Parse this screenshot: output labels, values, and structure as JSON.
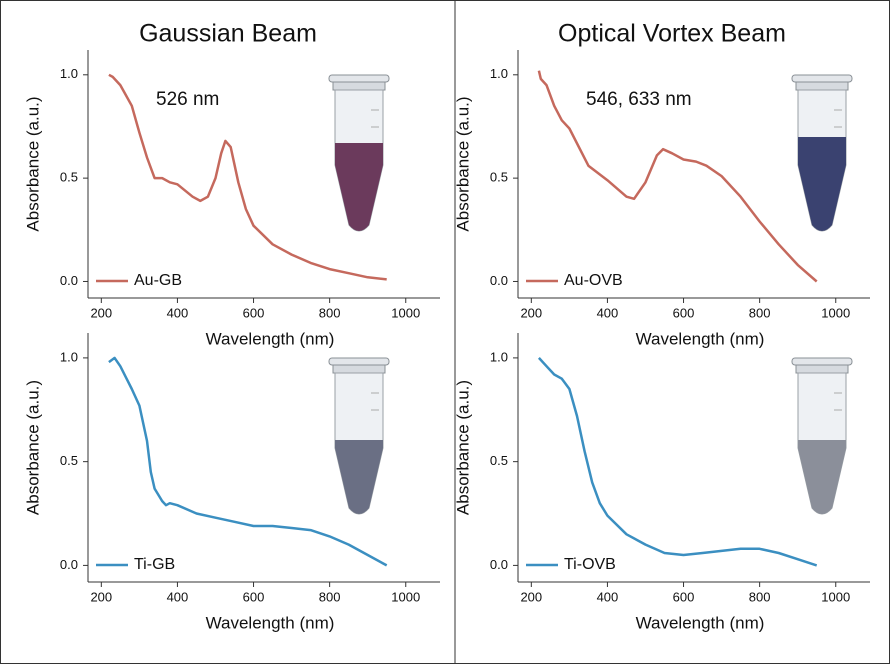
{
  "chart_data": [
    {
      "type": "line",
      "title": "Gaussian Beam",
      "annotation": "526 nm",
      "xlabel": "Wavelength (nm)",
      "ylabel": "Absorbance (a.u.)",
      "x": [
        220,
        230,
        250,
        280,
        300,
        320,
        340,
        360,
        380,
        400,
        440,
        460,
        480,
        500,
        515,
        526,
        540,
        560,
        580,
        600,
        650,
        700,
        750,
        800,
        850,
        900,
        950
      ],
      "series": [
        {
          "name": "Au-GB",
          "color": "#c5695d",
          "values": [
            1.0,
            0.99,
            0.95,
            0.85,
            0.72,
            0.6,
            0.5,
            0.5,
            0.48,
            0.47,
            0.41,
            0.39,
            0.41,
            0.5,
            0.62,
            0.68,
            0.65,
            0.48,
            0.35,
            0.27,
            0.18,
            0.13,
            0.09,
            0.06,
            0.04,
            0.02,
            0.01
          ]
        }
      ],
      "xlim": [
        165,
        1090
      ],
      "xticks": [
        200,
        400,
        600,
        800,
        1000
      ],
      "ylim": [
        -0.08,
        1.12
      ],
      "yticks": [
        {
          "value": 0,
          "label": "0.0"
        },
        {
          "value": 0.5,
          "label": "0.5"
        },
        {
          "value": 1,
          "label": "1.0"
        }
      ],
      "legend": "lower left"
    },
    {
      "type": "line",
      "title": "Optical Vortex Beam",
      "annotation": "546, 633 nm",
      "xlabel": "Wavelength (nm)",
      "ylabel": "Absorbance (a.u.)",
      "x": [
        220,
        225,
        240,
        260,
        280,
        300,
        350,
        400,
        450,
        470,
        500,
        530,
        546,
        570,
        600,
        633,
        660,
        700,
        750,
        800,
        850,
        900,
        950
      ],
      "series": [
        {
          "name": "Au-OVB",
          "color": "#c5695d",
          "values": [
            1.02,
            0.98,
            0.95,
            0.85,
            0.78,
            0.74,
            0.56,
            0.49,
            0.41,
            0.4,
            0.48,
            0.61,
            0.64,
            0.62,
            0.59,
            0.58,
            0.56,
            0.51,
            0.41,
            0.29,
            0.18,
            0.08,
            0.0
          ]
        }
      ],
      "xlim": [
        165,
        1090
      ],
      "xticks": [
        200,
        400,
        600,
        800,
        1000
      ],
      "ylim": [
        -0.08,
        1.12
      ],
      "yticks": [
        {
          "value": 0,
          "label": "0.0"
        },
        {
          "value": 0.5,
          "label": "0.5"
        },
        {
          "value": 1,
          "label": "1.0"
        }
      ],
      "legend": "lower left"
    },
    {
      "type": "line",
      "xlabel": "Wavelength (nm)",
      "ylabel": "Absorbance (a.u.)",
      "x": [
        220,
        235,
        250,
        280,
        300,
        320,
        330,
        340,
        360,
        370,
        380,
        400,
        450,
        500,
        550,
        600,
        650,
        700,
        750,
        800,
        850,
        900,
        950
      ],
      "series": [
        {
          "name": "Ti-GB",
          "color": "#3b8fc1",
          "values": [
            0.98,
            1.0,
            0.96,
            0.85,
            0.77,
            0.6,
            0.45,
            0.37,
            0.31,
            0.29,
            0.3,
            0.29,
            0.25,
            0.23,
            0.21,
            0.19,
            0.19,
            0.18,
            0.17,
            0.14,
            0.1,
            0.05,
            0.0
          ]
        }
      ],
      "xlim": [
        165,
        1090
      ],
      "xticks": [
        200,
        400,
        600,
        800,
        1000
      ],
      "ylim": [
        -0.08,
        1.12
      ],
      "yticks": [
        {
          "value": 0,
          "label": "0.0"
        },
        {
          "value": 0.5,
          "label": "0.5"
        },
        {
          "value": 1,
          "label": "1.0"
        }
      ],
      "legend": "lower left"
    },
    {
      "type": "line",
      "xlabel": "Wavelength (nm)",
      "ylabel": "Absorbance (a.u.)",
      "x": [
        220,
        240,
        260,
        280,
        300,
        320,
        340,
        360,
        380,
        400,
        450,
        500,
        550,
        600,
        650,
        700,
        750,
        800,
        850,
        900,
        950
      ],
      "series": [
        {
          "name": "Ti-OVB",
          "color": "#3b8fc1",
          "values": [
            1.0,
            0.96,
            0.92,
            0.9,
            0.85,
            0.72,
            0.55,
            0.4,
            0.3,
            0.24,
            0.15,
            0.1,
            0.06,
            0.05,
            0.06,
            0.07,
            0.08,
            0.08,
            0.06,
            0.03,
            0.0
          ]
        }
      ],
      "xlim": [
        165,
        1090
      ],
      "xticks": [
        200,
        400,
        600,
        800,
        1000
      ],
      "ylim": [
        -0.08,
        1.12
      ],
      "yticks": [
        {
          "value": 0,
          "label": "0.0"
        },
        {
          "value": 0.5,
          "label": "0.5"
        },
        {
          "value": 1,
          "label": "1.0"
        }
      ],
      "legend": "lower left"
    }
  ]
}
